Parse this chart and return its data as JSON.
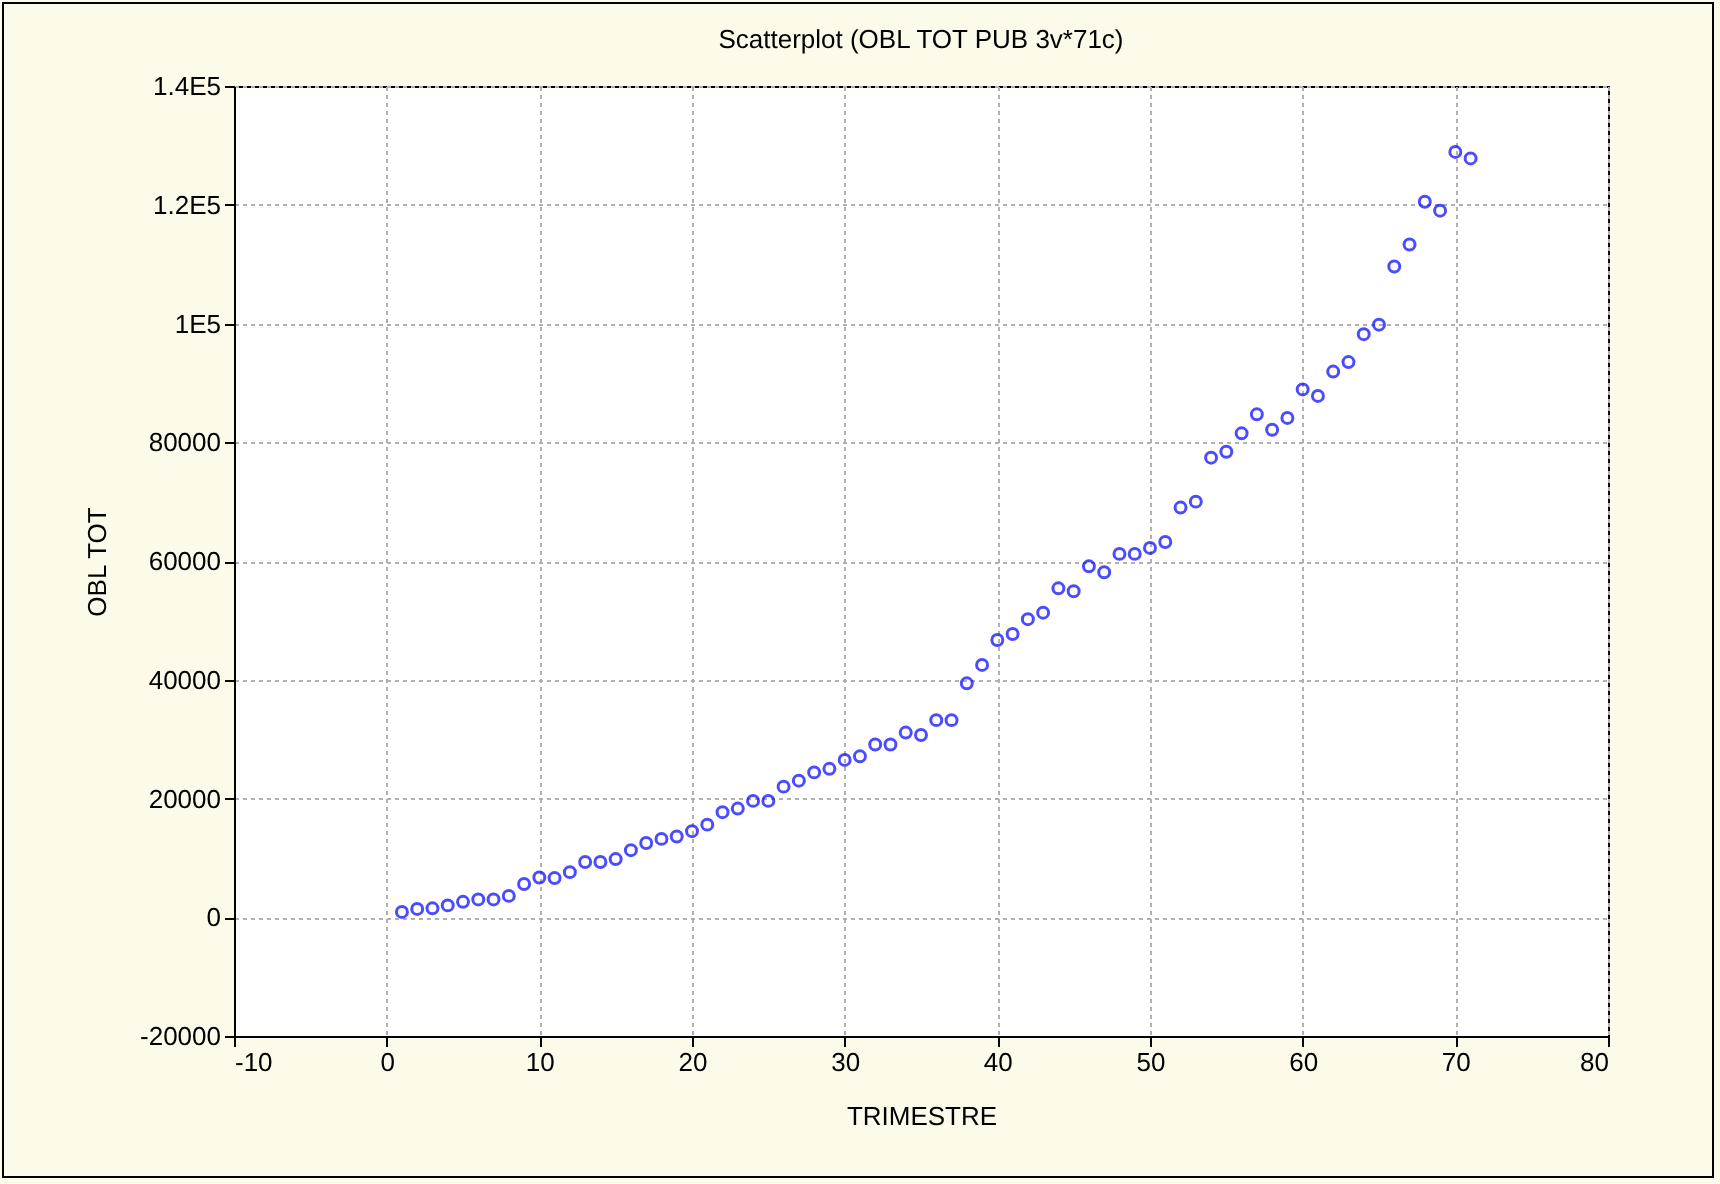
{
  "chart_data": {
    "type": "scatter",
    "title": "Scatterplot (OBL TOT PUB 3v*71c)",
    "xlabel": "TRIMESTRE",
    "ylabel": "OBL TOT",
    "x": [
      1,
      2,
      3,
      4,
      5,
      6,
      7,
      8,
      9,
      10,
      11,
      12,
      13,
      14,
      15,
      16,
      17,
      18,
      19,
      20,
      21,
      22,
      23,
      24,
      25,
      26,
      27,
      28,
      29,
      30,
      31,
      32,
      33,
      34,
      35,
      36,
      37,
      38,
      39,
      40,
      41,
      42,
      43,
      44,
      45,
      46,
      47,
      48,
      49,
      50,
      51,
      52,
      53,
      54,
      55,
      56,
      57,
      58,
      59,
      60,
      61,
      62,
      63,
      64,
      65,
      66,
      67,
      68,
      69,
      70,
      71
    ],
    "series": [
      {
        "color": "#0000ff",
        "values": [
          900,
          1400,
          1500,
          2000,
          2600,
          3000,
          3000,
          3600,
          5600,
          6700,
          6600,
          7600,
          9300,
          9300,
          9800,
          11300,
          12500,
          13200,
          13600,
          14500,
          15600,
          17700,
          18300,
          19600,
          19600,
          22000,
          23000,
          24400,
          25000,
          26500,
          27100,
          29100,
          29100,
          31100,
          30700,
          33200,
          33200,
          39400,
          42500,
          46700,
          47700,
          50200,
          51300,
          55400,
          54900,
          59100,
          58100,
          61200,
          61200,
          62200,
          63200,
          69000,
          70000,
          77400,
          78400,
          81500,
          84700,
          82100,
          84100,
          88900,
          87800,
          91900,
          93500,
          98200,
          99800,
          109600,
          113300,
          120500,
          119000,
          128900,
          127800
        ]
      }
    ],
    "xlim": [
      -10,
      80
    ],
    "xticks": [
      -10,
      0,
      10,
      20,
      30,
      40,
      50,
      60,
      70,
      80
    ],
    "ylim": [
      -20000,
      140000
    ],
    "yticks": [
      -20000,
      0,
      20000,
      40000,
      60000,
      80000,
      {
        "value": 100000,
        "label": "1E5"
      },
      {
        "value": 120000,
        "label": "1.2E5"
      },
      {
        "value": 140000,
        "label": "1.4E5"
      }
    ],
    "grid": true,
    "marker": "circle"
  }
}
